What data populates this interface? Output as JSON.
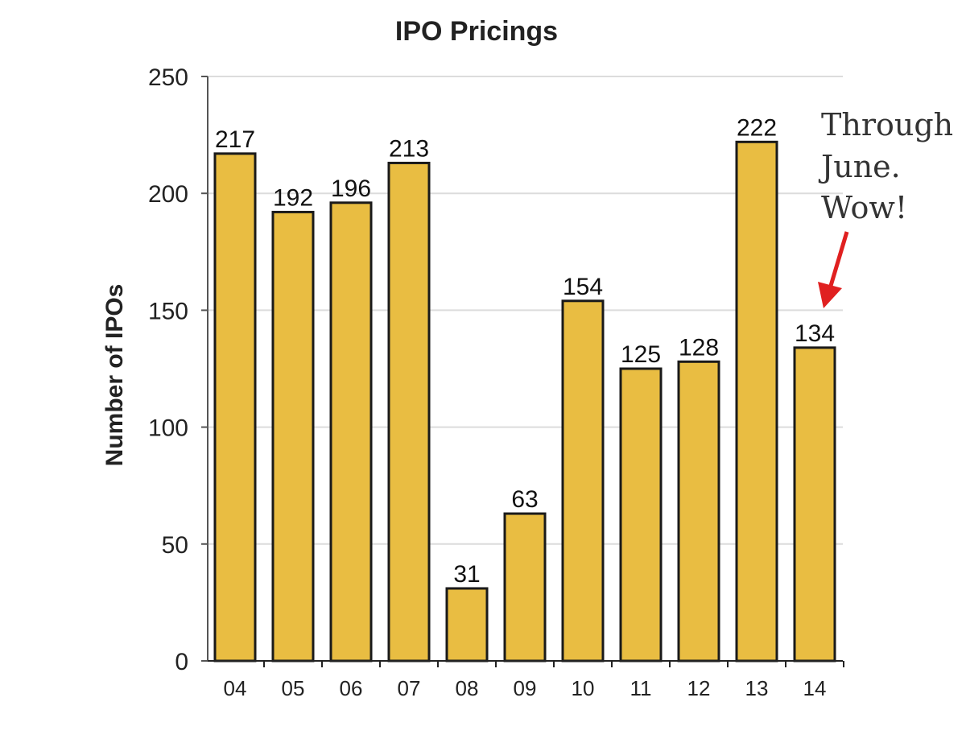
{
  "chart_data": {
    "type": "bar",
    "title": "IPO Pricings",
    "xlabel": "",
    "ylabel": "Number of IPOs",
    "categories": [
      "04",
      "05",
      "06",
      "07",
      "08",
      "09",
      "10",
      "11",
      "12",
      "13",
      "14"
    ],
    "values": [
      217,
      192,
      196,
      213,
      31,
      63,
      154,
      125,
      128,
      222,
      134
    ],
    "ylim": [
      0,
      250
    ],
    "yticks": [
      0,
      50,
      100,
      150,
      200,
      250
    ],
    "grid": true,
    "bar_color": "#e9bd42",
    "annotation": {
      "lines": [
        "Through",
        "June.",
        "Wow!"
      ],
      "target_category": "14",
      "arrow_color": "#e02020"
    }
  }
}
